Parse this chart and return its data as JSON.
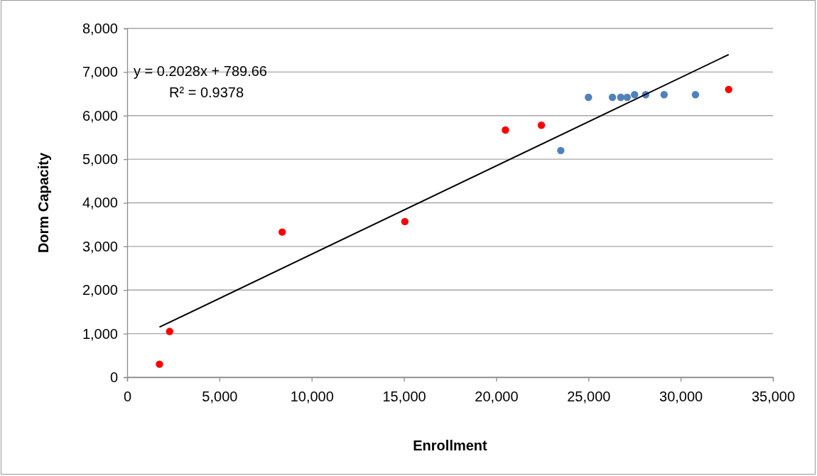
{
  "chart_data": {
    "type": "scatter",
    "xlabel": "Enrollment",
    "ylabel": "Dorm Capacity",
    "xlim": [
      0,
      35000
    ],
    "ylim": [
      0,
      8000
    ],
    "xticks": [
      {
        "value": 0,
        "label": "0"
      },
      {
        "value": 5000,
        "label": "5,000"
      },
      {
        "value": 10000,
        "label": "10,000"
      },
      {
        "value": 15000,
        "label": "15,000"
      },
      {
        "value": 20000,
        "label": "20,000"
      },
      {
        "value": 25000,
        "label": "25,000"
      },
      {
        "value": 30000,
        "label": "30,000"
      },
      {
        "value": 35000,
        "label": "35,000"
      }
    ],
    "yticks": [
      {
        "value": 0,
        "label": "0"
      },
      {
        "value": 1000,
        "label": "1,000"
      },
      {
        "value": 2000,
        "label": "2,000"
      },
      {
        "value": 3000,
        "label": "3,000"
      },
      {
        "value": 4000,
        "label": "4,000"
      },
      {
        "value": 5000,
        "label": "5,000"
      },
      {
        "value": 6000,
        "label": "6,000"
      },
      {
        "value": 7000,
        "label": "7,000"
      },
      {
        "value": 8000,
        "label": "8,000"
      }
    ],
    "grid": "y",
    "marker": "circle",
    "series": [
      {
        "color": "#ff0000",
        "x": [
          1750,
          2300,
          8400,
          15050,
          20500,
          22450,
          32600
        ],
        "values": [
          300,
          1050,
          3330,
          3570,
          5670,
          5780,
          6600
        ]
      },
      {
        "color": "#4f81bd",
        "x": [
          23500,
          25000,
          26300,
          26750,
          27100,
          27500,
          28100,
          29100,
          30800
        ],
        "values": [
          5200,
          6420,
          6420,
          6420,
          6420,
          6480,
          6480,
          6480,
          6480
        ]
      },
      {
        "type": "line",
        "marker": "none",
        "color": "#000000",
        "x": [
          1750,
          32600
        ],
        "values": [
          1150,
          7400
        ]
      }
    ],
    "annotations": [
      "y = 0.2028x + 789.66",
      "R² = 0.9378"
    ]
  }
}
